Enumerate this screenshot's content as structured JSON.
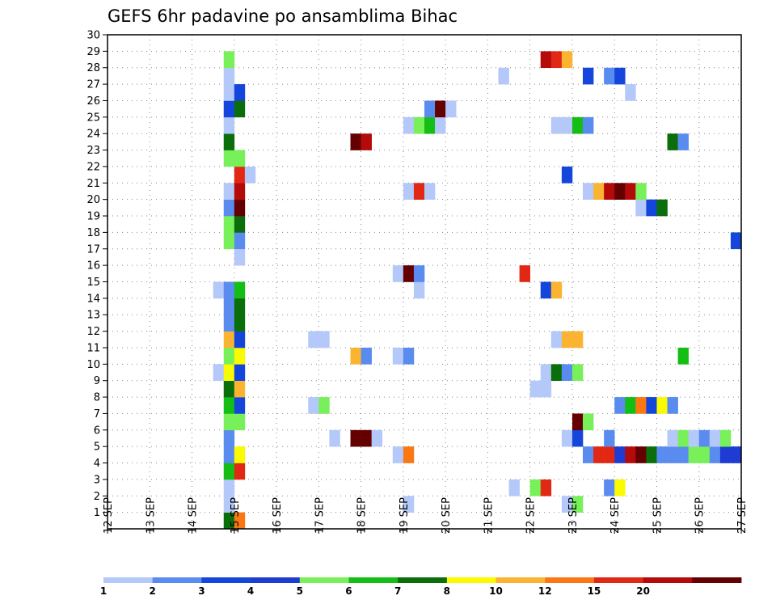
{
  "chart_data": {
    "type": "heatmap",
    "title": "GEFS 6hr padavine po ansamblima Bihac",
    "xlabel": "",
    "ylabel": "",
    "x_ticks": [
      "12 SEP",
      "13 SEP",
      "14 SEP",
      "15 SEP",
      "16 SEP",
      "17 SEP",
      "18 SEP",
      "19 SEP",
      "20 SEP",
      "21 SEP",
      "22 SEP",
      "23 SEP",
      "24 SEP",
      "25 SEP",
      "26 SEP",
      "27 SEP"
    ],
    "x_range_days": [
      12,
      27
    ],
    "y_ticks": [
      1,
      2,
      3,
      4,
      5,
      6,
      7,
      8,
      9,
      10,
      11,
      12,
      13,
      14,
      15,
      16,
      17,
      18,
      19,
      20,
      21,
      22,
      23,
      24,
      25,
      26,
      27,
      28,
      29,
      30
    ],
    "y_range": [
      0,
      30
    ],
    "grid": true,
    "colorbar": {
      "placement": "bottom",
      "labels": [
        "1",
        "2",
        "3",
        "4",
        "5",
        "6",
        "7",
        "8",
        "10",
        "12",
        "15",
        "20"
      ],
      "colors": [
        "#b4c8fa",
        "#5a8cf0",
        "#1446dc",
        "#1e3cd2",
        "#78f05a",
        "#14be14",
        "#0a6e0a",
        "#fafa00",
        "#fab432",
        "#fa7814",
        "#e12814",
        "#b40a0a",
        "#640000"
      ]
    },
    "note": "Each cell is one 6-hour step of one ensemble member; v is the color class index (0 lightest ... 12 darkest).",
    "cells": [
      {
        "m": 0,
        "t": "14.75",
        "v": 6
      },
      {
        "m": 0,
        "t": "15.0",
        "v": 9
      },
      {
        "m": 1,
        "t": "14.75",
        "v": 0
      },
      {
        "m": 1,
        "t": "19.0",
        "v": 0
      },
      {
        "m": 1,
        "t": "22.75",
        "v": 0
      },
      {
        "m": 1,
        "t": "23.0",
        "v": 4
      },
      {
        "m": 2,
        "t": "14.75",
        "v": 0
      },
      {
        "m": 2,
        "t": "21.5",
        "v": 0
      },
      {
        "m": 2,
        "t": "22.0",
        "v": 4
      },
      {
        "m": 2,
        "t": "22.25",
        "v": 10
      },
      {
        "m": 2,
        "t": "23.75",
        "v": 1
      },
      {
        "m": 2,
        "t": "24.0",
        "v": 7
      },
      {
        "m": 3,
        "t": "14.75",
        "v": 5
      },
      {
        "m": 3,
        "t": "15.0",
        "v": 10
      },
      {
        "m": 4,
        "t": "14.75",
        "v": 1
      },
      {
        "m": 4,
        "t": "15.0",
        "v": 7
      },
      {
        "m": 4,
        "t": "18.75",
        "v": 0
      },
      {
        "m": 4,
        "t": "19.0",
        "v": 9
      },
      {
        "m": 4,
        "t": "23.25",
        "v": 1
      },
      {
        "m": 4,
        "t": "23.5",
        "v": 10
      },
      {
        "m": 4,
        "t": "23.75",
        "v": 10
      },
      {
        "m": 4,
        "t": "24.0",
        "v": 3
      },
      {
        "m": 4,
        "t": "24.25",
        "v": 11
      },
      {
        "m": 4,
        "t": "24.5",
        "v": 12
      },
      {
        "m": 4,
        "t": "24.75",
        "v": 6
      },
      {
        "m": 4,
        "t": "25.0",
        "v": 1
      },
      {
        "m": 4,
        "t": "25.25",
        "v": 1
      },
      {
        "m": 4,
        "t": "25.5",
        "v": 1
      },
      {
        "m": 4,
        "t": "25.75",
        "v": 4
      },
      {
        "m": 4,
        "t": "26.0",
        "v": 4
      },
      {
        "m": 4,
        "t": "26.25",
        "v": 1
      },
      {
        "m": 4,
        "t": "26.5",
        "v": 3
      },
      {
        "m": 4,
        "t": "26.75",
        "v": 3
      },
      {
        "m": 5,
        "t": "14.75",
        "v": 1
      },
      {
        "m": 5,
        "t": "17.25",
        "v": 0
      },
      {
        "m": 5,
        "t": "17.75",
        "v": 12
      },
      {
        "m": 5,
        "t": "18.0",
        "v": 12
      },
      {
        "m": 5,
        "t": "18.25",
        "v": 0
      },
      {
        "m": 5,
        "t": "22.75",
        "v": 0
      },
      {
        "m": 5,
        "t": "23.0",
        "v": 2
      },
      {
        "m": 5,
        "t": "23.75",
        "v": 1
      },
      {
        "m": 5,
        "t": "25.25",
        "v": 0
      },
      {
        "m": 5,
        "t": "25.5",
        "v": 4
      },
      {
        "m": 5,
        "t": "25.75",
        "v": 0
      },
      {
        "m": 5,
        "t": "26.0",
        "v": 1
      },
      {
        "m": 5,
        "t": "26.25",
        "v": 0
      },
      {
        "m": 5,
        "t": "26.5",
        "v": 4
      },
      {
        "m": 6,
        "t": "14.75",
        "v": 4
      },
      {
        "m": 6,
        "t": "15.0",
        "v": 4
      },
      {
        "m": 6,
        "t": "23.0",
        "v": 12
      },
      {
        "m": 6,
        "t": "23.25",
        "v": 4
      },
      {
        "m": 7,
        "t": "14.75",
        "v": 5
      },
      {
        "m": 7,
        "t": "15.0",
        "v": 2
      },
      {
        "m": 7,
        "t": "16.75",
        "v": 0
      },
      {
        "m": 7,
        "t": "17.0",
        "v": 4
      },
      {
        "m": 7,
        "t": "24.0",
        "v": 1
      },
      {
        "m": 7,
        "t": "24.25",
        "v": 5
      },
      {
        "m": 7,
        "t": "24.5",
        "v": 9
      },
      {
        "m": 7,
        "t": "24.75",
        "v": 2
      },
      {
        "m": 7,
        "t": "25.0",
        "v": 7
      },
      {
        "m": 7,
        "t": "25.25",
        "v": 1
      },
      {
        "m": 8,
        "t": "14.75",
        "v": 6
      },
      {
        "m": 8,
        "t": "15.0",
        "v": 8
      },
      {
        "m": 8,
        "t": "22.0",
        "v": 0
      },
      {
        "m": 8,
        "t": "22.25",
        "v": 0
      },
      {
        "m": 9,
        "t": "14.5",
        "v": 0
      },
      {
        "m": 9,
        "t": "14.75",
        "v": 7
      },
      {
        "m": 9,
        "t": "15.0",
        "v": 2
      },
      {
        "m": 9,
        "t": "22.25",
        "v": 0
      },
      {
        "m": 9,
        "t": "22.5",
        "v": 6
      },
      {
        "m": 9,
        "t": "22.75",
        "v": 1
      },
      {
        "m": 9,
        "t": "23.0",
        "v": 4
      },
      {
        "m": 10,
        "t": "14.75",
        "v": 4
      },
      {
        "m": 10,
        "t": "15.0",
        "v": 7
      },
      {
        "m": 10,
        "t": "17.75",
        "v": 8
      },
      {
        "m": 10,
        "t": "18.0",
        "v": 1
      },
      {
        "m": 10,
        "t": "18.75",
        "v": 0
      },
      {
        "m": 10,
        "t": "19.0",
        "v": 1
      },
      {
        "m": 10,
        "t": "25.5",
        "v": 5
      },
      {
        "m": 11,
        "t": "14.75",
        "v": 8
      },
      {
        "m": 11,
        "t": "15.0",
        "v": 2
      },
      {
        "m": 11,
        "t": "16.75",
        "v": 0
      },
      {
        "m": 11,
        "t": "17.0",
        "v": 0
      },
      {
        "m": 11,
        "t": "22.5",
        "v": 0
      },
      {
        "m": 11,
        "t": "22.75",
        "v": 8
      },
      {
        "m": 11,
        "t": "23.0",
        "v": 8
      },
      {
        "m": 12,
        "t": "14.75",
        "v": 1
      },
      {
        "m": 12,
        "t": "15.0",
        "v": 6
      },
      {
        "m": 13,
        "t": "14.75",
        "v": 1
      },
      {
        "m": 13,
        "t": "15.0",
        "v": 6
      },
      {
        "m": 14,
        "t": "14.5",
        "v": 0
      },
      {
        "m": 14,
        "t": "14.75",
        "v": 1
      },
      {
        "m": 14,
        "t": "15.0",
        "v": 5
      },
      {
        "m": 14,
        "t": "19.25",
        "v": 0
      },
      {
        "m": 14,
        "t": "22.25",
        "v": 2
      },
      {
        "m": 14,
        "t": "22.5",
        "v": 8
      },
      {
        "m": 15,
        "t": "18.75",
        "v": 0
      },
      {
        "m": 15,
        "t": "19.0",
        "v": 12
      },
      {
        "m": 15,
        "t": "19.25",
        "v": 1
      },
      {
        "m": 15,
        "t": "21.75",
        "v": 10
      },
      {
        "m": 16,
        "t": "15.0",
        "v": 0
      },
      {
        "m": 17,
        "t": "14.75",
        "v": 4
      },
      {
        "m": 17,
        "t": "15.0",
        "v": 1
      },
      {
        "m": 17,
        "t": "26.75",
        "v": 2
      },
      {
        "m": 18,
        "t": "14.75",
        "v": 4
      },
      {
        "m": 18,
        "t": "15.0",
        "v": 6
      },
      {
        "m": 19,
        "t": "14.75",
        "v": 1
      },
      {
        "m": 19,
        "t": "15.0",
        "v": 12
      },
      {
        "m": 19,
        "t": "24.5",
        "v": 0
      },
      {
        "m": 19,
        "t": "24.75",
        "v": 2
      },
      {
        "m": 19,
        "t": "25.0",
        "v": 6
      },
      {
        "m": 20,
        "t": "14.75",
        "v": 0
      },
      {
        "m": 20,
        "t": "15.0",
        "v": 11
      },
      {
        "m": 20,
        "t": "19.0",
        "v": 0
      },
      {
        "m": 20,
        "t": "19.25",
        "v": 10
      },
      {
        "m": 20,
        "t": "19.5",
        "v": 0
      },
      {
        "m": 20,
        "t": "23.25",
        "v": 0
      },
      {
        "m": 20,
        "t": "23.5",
        "v": 8
      },
      {
        "m": 20,
        "t": "23.75",
        "v": 11
      },
      {
        "m": 20,
        "t": "24.0",
        "v": 12
      },
      {
        "m": 20,
        "t": "24.25",
        "v": 11
      },
      {
        "m": 20,
        "t": "24.5",
        "v": 4
      },
      {
        "m": 21,
        "t": "15.0",
        "v": 10
      },
      {
        "m": 21,
        "t": "15.25",
        "v": 0
      },
      {
        "m": 21,
        "t": "22.75",
        "v": 2
      },
      {
        "m": 22,
        "t": "14.75",
        "v": 4
      },
      {
        "m": 22,
        "t": "15.0",
        "v": 4
      },
      {
        "m": 23,
        "t": "14.75",
        "v": 6
      },
      {
        "m": 23,
        "t": "17.75",
        "v": 12
      },
      {
        "m": 23,
        "t": "18.0",
        "v": 11
      },
      {
        "m": 23,
        "t": "25.25",
        "v": 6
      },
      {
        "m": 23,
        "t": "25.5",
        "v": 1
      },
      {
        "m": 24,
        "t": "14.75",
        "v": 0
      },
      {
        "m": 24,
        "t": "19.0",
        "v": 0
      },
      {
        "m": 24,
        "t": "19.25",
        "v": 4
      },
      {
        "m": 24,
        "t": "19.5",
        "v": 5
      },
      {
        "m": 24,
        "t": "19.75",
        "v": 0
      },
      {
        "m": 24,
        "t": "22.5",
        "v": 0
      },
      {
        "m": 24,
        "t": "22.75",
        "v": 0
      },
      {
        "m": 24,
        "t": "23.0",
        "v": 5
      },
      {
        "m": 24,
        "t": "23.25",
        "v": 1
      },
      {
        "m": 25,
        "t": "14.75",
        "v": 2
      },
      {
        "m": 25,
        "t": "15.0",
        "v": 6
      },
      {
        "m": 25,
        "t": "19.5",
        "v": 1
      },
      {
        "m": 25,
        "t": "19.75",
        "v": 12
      },
      {
        "m": 25,
        "t": "20.0",
        "v": 0
      },
      {
        "m": 26,
        "t": "14.75",
        "v": 0
      },
      {
        "m": 26,
        "t": "15.0",
        "v": 2
      },
      {
        "m": 26,
        "t": "24.25",
        "v": 0
      },
      {
        "m": 27,
        "t": "14.75",
        "v": 0
      },
      {
        "m": 27,
        "t": "21.25",
        "v": 0
      },
      {
        "m": 27,
        "t": "23.25",
        "v": 2
      },
      {
        "m": 27,
        "t": "23.75",
        "v": 1
      },
      {
        "m": 27,
        "t": "24.0",
        "v": 2
      },
      {
        "m": 28,
        "t": "14.75",
        "v": 4
      },
      {
        "m": 28,
        "t": "22.25",
        "v": 11
      },
      {
        "m": 28,
        "t": "22.5",
        "v": 10
      },
      {
        "m": 28,
        "t": "22.75",
        "v": 8
      }
    ]
  }
}
